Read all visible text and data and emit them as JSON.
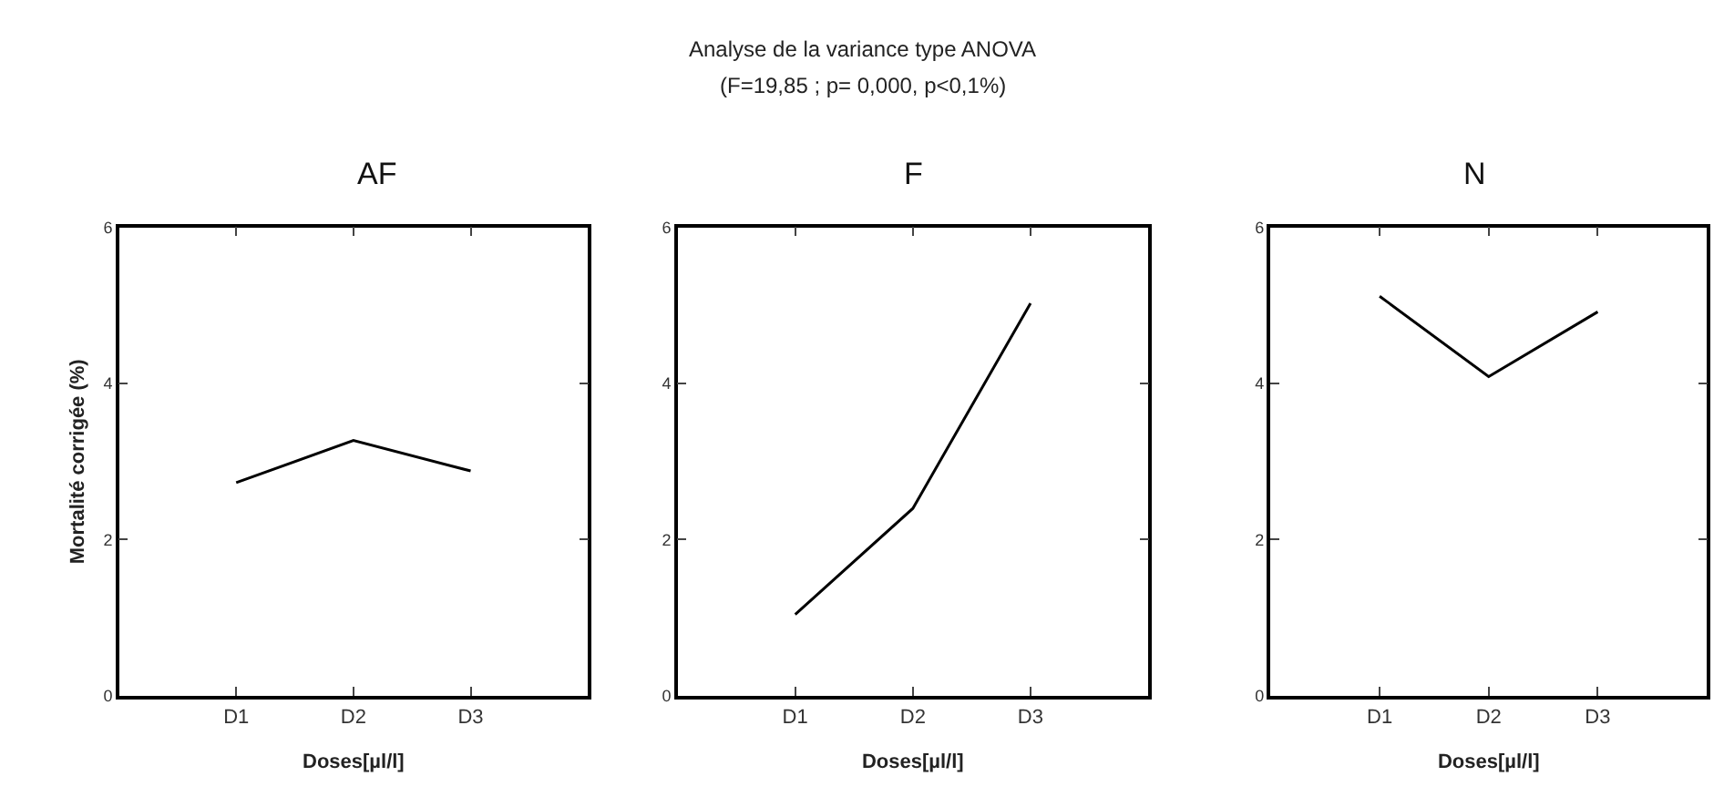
{
  "chart_data": [
    {
      "type": "line",
      "title": "AF",
      "annotations": [
        "Analyse de la variance type ANOVA",
        "(F=19,85 ; p= 0,000, p<0,1%)"
      ],
      "categories": [
        "D1",
        "D2",
        "D3"
      ],
      "values": [
        2.73,
        3.27,
        2.88
      ],
      "color": "#000000",
      "ylim": [
        0,
        6
      ],
      "yticks": [
        0,
        2,
        4,
        6
      ],
      "xlabel": "Doses[µl/l]",
      "ylabel": "Mortalité corrigée (%)",
      "marker": "none",
      "line_style": "solid"
    },
    {
      "type": "line",
      "title": "F",
      "categories": [
        "D1",
        "D2",
        "D3"
      ],
      "values": [
        1.04,
        2.4,
        5.03
      ],
      "color": "#000000",
      "ylim": [
        0,
        6
      ],
      "yticks": [
        0,
        2,
        4,
        6
      ],
      "xlabel": "Doses[µl/l]",
      "marker": "none",
      "line_style": "solid"
    },
    {
      "type": "line",
      "title": "N",
      "categories": [
        "D1",
        "D2",
        "D3"
      ],
      "values": [
        5.12,
        4.09,
        4.92
      ],
      "color": "#000000",
      "ylim": [
        0,
        6
      ],
      "yticks": [
        0,
        2,
        4,
        6
      ],
      "xlabel": "Doses[µl/l]",
      "marker": "none",
      "line_style": "solid"
    }
  ]
}
